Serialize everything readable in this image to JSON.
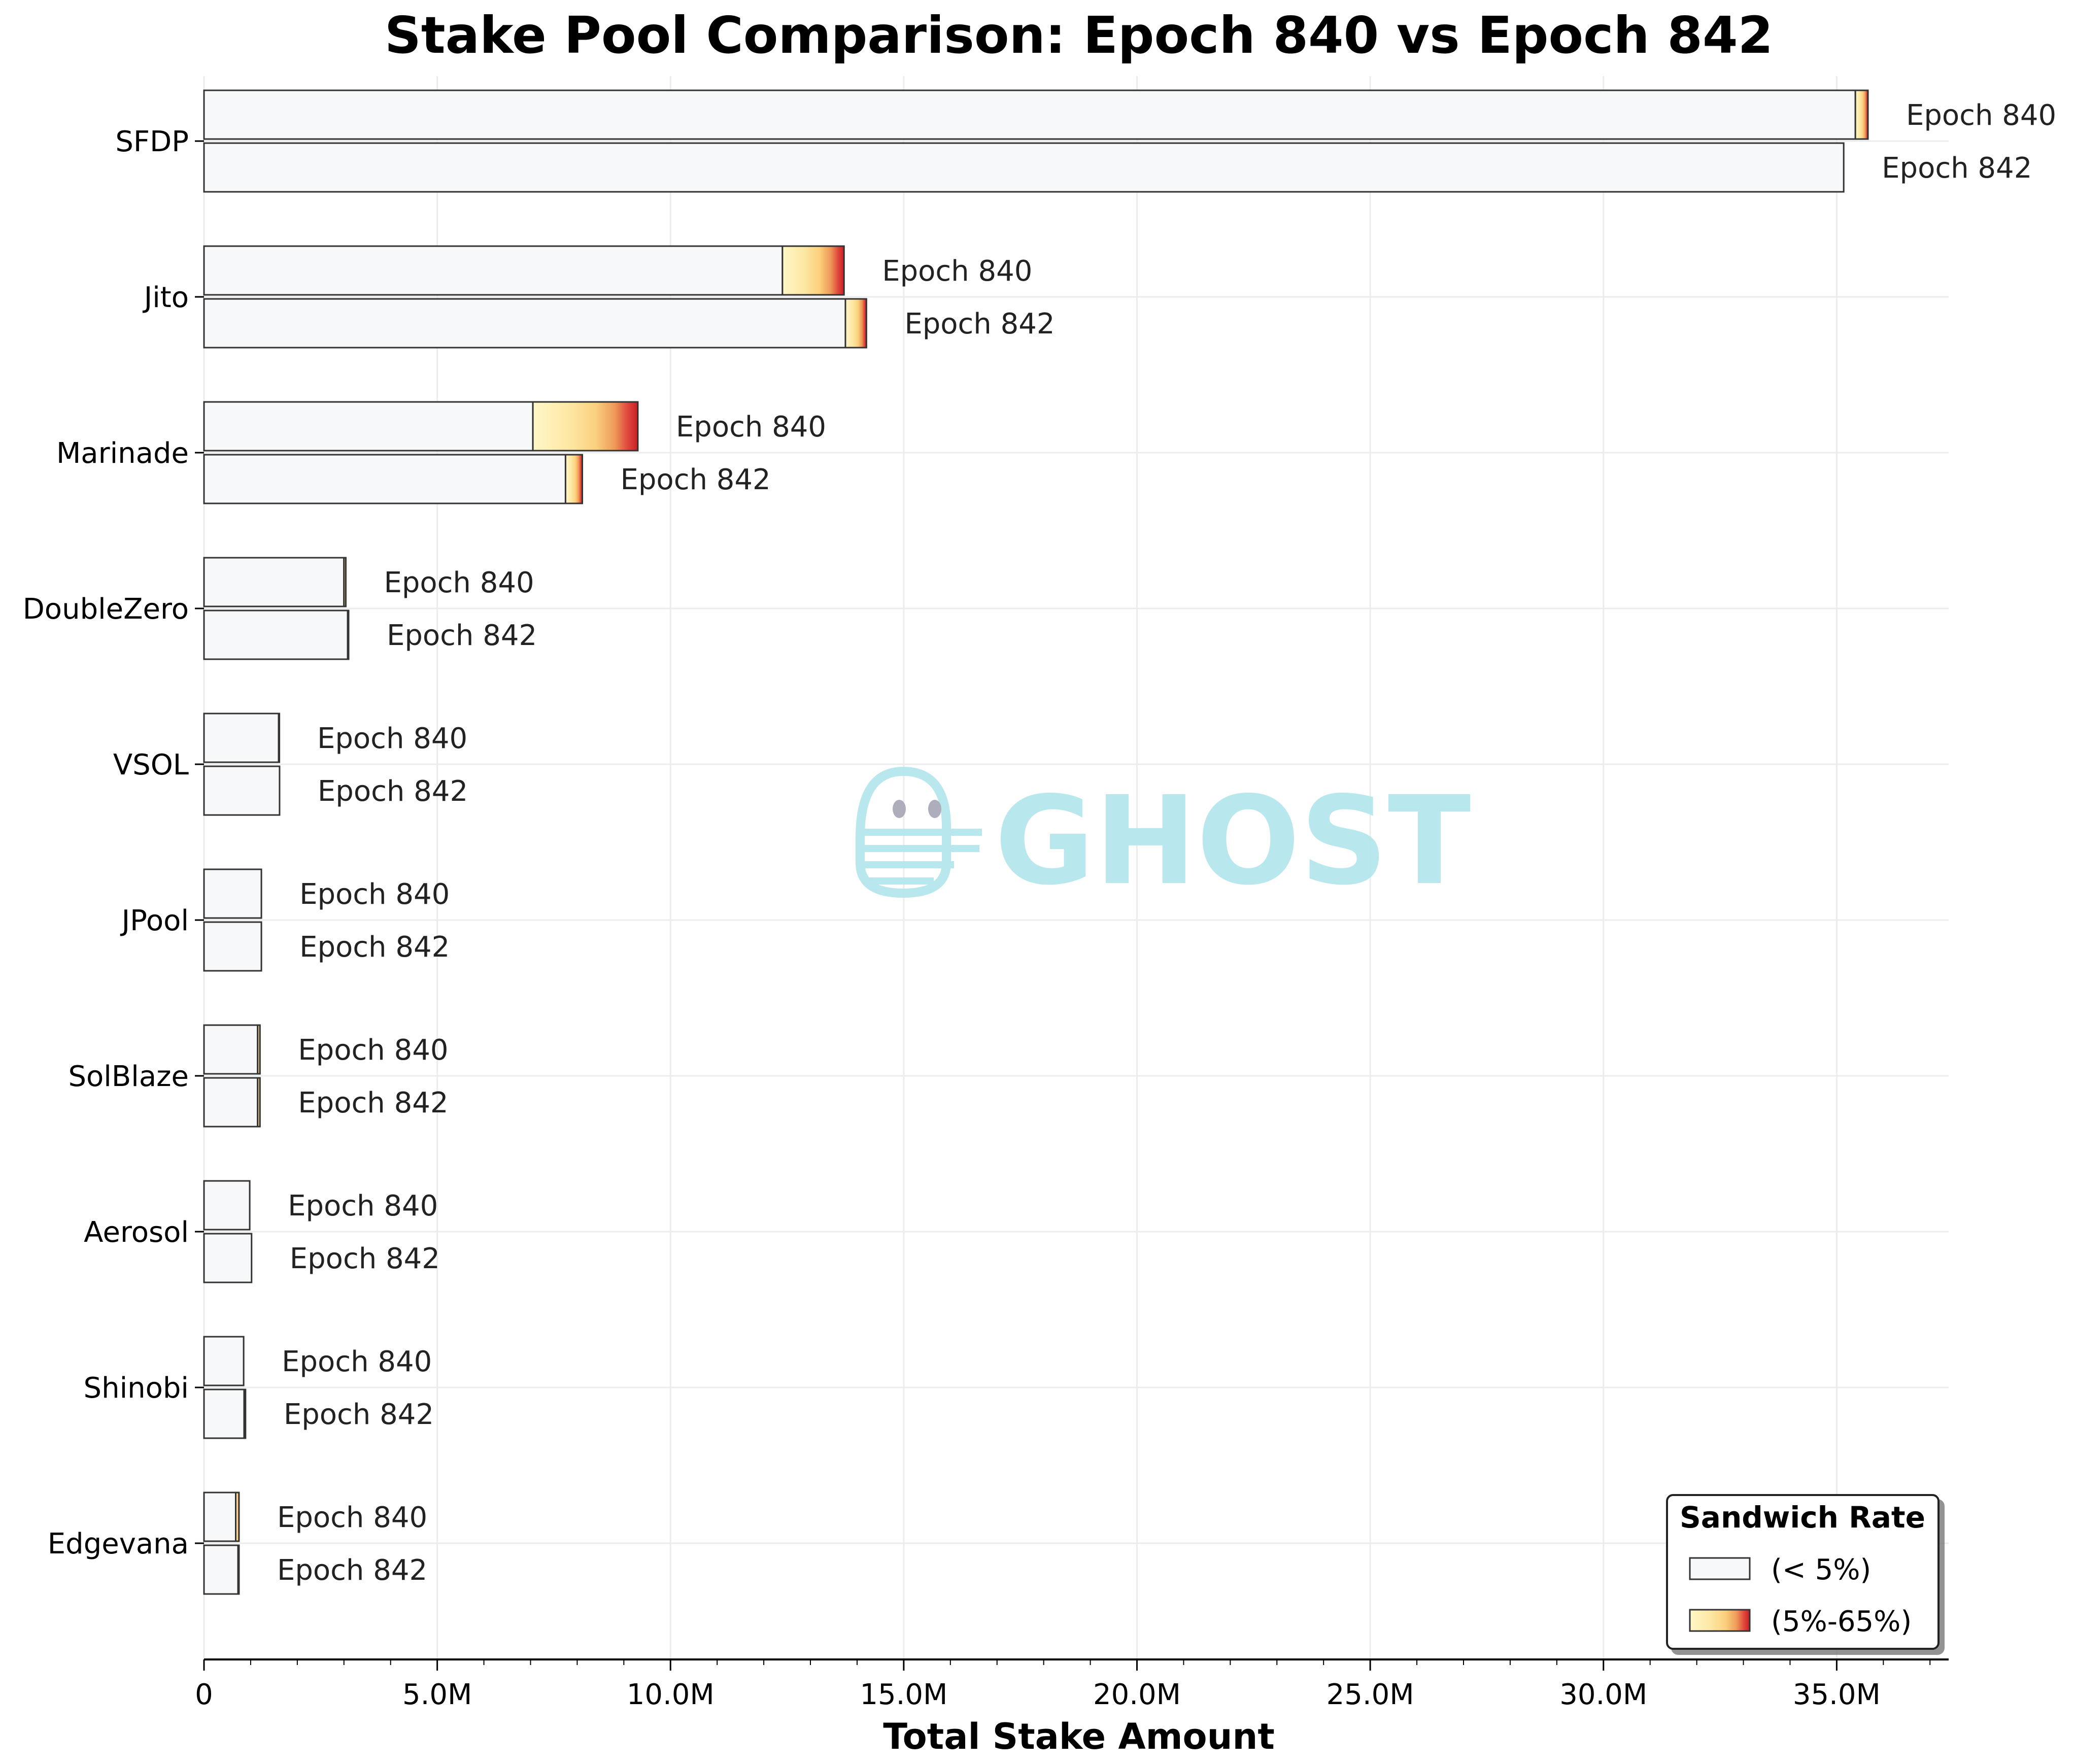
{
  "chart_data": {
    "type": "bar",
    "orientation": "horizontal",
    "stacked": true,
    "title": "Stake Pool Comparison: Epoch 840 vs Epoch 842",
    "xlabel": "Total Stake Amount",
    "ylabel": "",
    "xlim": [
      0,
      37400000
    ],
    "x_ticks": [
      0,
      5000000,
      10000000,
      15000000,
      20000000,
      25000000,
      30000000,
      35000000
    ],
    "x_tick_labels": [
      "0",
      "5.0M",
      "10.0M",
      "15.0M",
      "20.0M",
      "25.0M",
      "30.0M",
      "35.0M"
    ],
    "categories": [
      "SFDP",
      "Jito",
      "Marinade",
      "DoubleZero",
      "VSOL",
      "JPool",
      "SolBlaze",
      "Aerosol",
      "Shinobi",
      "Edgevana"
    ],
    "bar_labels": [
      "Epoch 840",
      "Epoch 842"
    ],
    "grid": "x",
    "series": [
      {
        "name": "(< 5%)",
        "epoch_840": [
          35400000,
          12400000,
          7050000,
          3000000,
          1600000,
          1230000,
          1150000,
          980000,
          850000,
          680000
        ],
        "epoch_842": [
          35150000,
          13750000,
          7750000,
          3080000,
          1620000,
          1230000,
          1150000,
          1020000,
          860000,
          730000
        ]
      },
      {
        "name": "(5%-65%)",
        "epoch_840": [
          270000,
          1320000,
          2250000,
          40000,
          10000,
          0,
          50000,
          0,
          0,
          70000
        ],
        "epoch_842": [
          0,
          450000,
          360000,
          20000,
          0,
          0,
          50000,
          0,
          30000,
          20000
        ]
      }
    ],
    "legend": {
      "title": "Sandwich Rate",
      "position": "lower-right",
      "entries": [
        "(< 5%)",
        "(5%-65%)"
      ]
    },
    "colors": {
      "low": "#f6f8fa",
      "gradient": [
        "#fff7c8",
        "#fde7a4",
        "#fbd07d",
        "#ee9a59",
        "#e04a3c",
        "#c81e27"
      ],
      "edge": "#333333",
      "grid": "#ececec"
    }
  },
  "watermark": {
    "text": "GHOST",
    "color": "#b5e6ee"
  }
}
